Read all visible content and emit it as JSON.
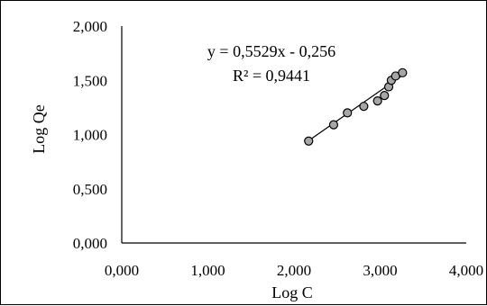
{
  "chart_data": {
    "type": "scatter",
    "xlabel": "Log C",
    "ylabel": "Log Qe",
    "xlim": [
      0,
      4
    ],
    "ylim": [
      0,
      2
    ],
    "x_ticks": [
      "0,000",
      "1,000",
      "2,000",
      "3,000",
      "4,000"
    ],
    "y_ticks": [
      "0,000",
      "0,500",
      "1,000",
      "1,500",
      "2,000"
    ],
    "x_tick_values": [
      0,
      1,
      2,
      3,
      4
    ],
    "y_tick_values": [
      0,
      0.5,
      1,
      1.5,
      2
    ],
    "grid": false,
    "points": [
      {
        "x": 2.17,
        "y": 0.94
      },
      {
        "x": 2.46,
        "y": 1.09
      },
      {
        "x": 2.62,
        "y": 1.2
      },
      {
        "x": 2.81,
        "y": 1.26
      },
      {
        "x": 2.97,
        "y": 1.31
      },
      {
        "x": 3.05,
        "y": 1.36
      },
      {
        "x": 3.1,
        "y": 1.44
      },
      {
        "x": 3.13,
        "y": 1.5
      },
      {
        "x": 3.18,
        "y": 1.54
      },
      {
        "x": 3.26,
        "y": 1.57
      }
    ],
    "trendline": {
      "slope": 0.5529,
      "intercept": -0.256,
      "x_range": [
        2.17,
        3.26
      ],
      "equation_label": "y = 0,5529x - 0,256",
      "r2_label": "R² = 0,9441"
    },
    "colors": {
      "marker_fill": "#a6a6a6",
      "marker_stroke": "#000000",
      "line": "#000000",
      "axis": "#000000"
    }
  }
}
